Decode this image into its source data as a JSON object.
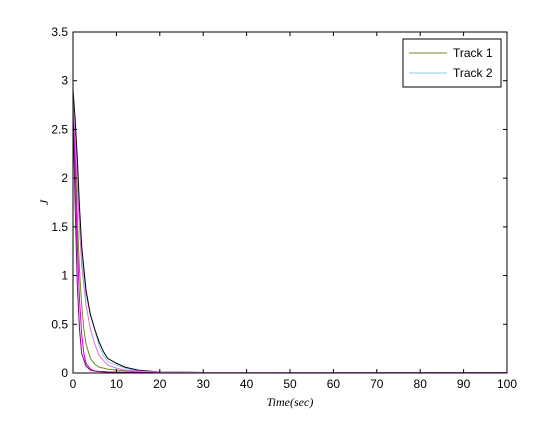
{
  "chart_data": {
    "type": "line",
    "xlabel": "Time(sec)",
    "ylabel": "J",
    "xlim": [
      0,
      100
    ],
    "ylim": [
      0,
      3.5
    ],
    "xticks": [
      0,
      10,
      20,
      30,
      40,
      50,
      60,
      70,
      80,
      90,
      100
    ],
    "yticks": [
      0,
      0.5,
      1,
      1.5,
      2,
      2.5,
      3,
      3.5
    ],
    "grid": false,
    "legend_position": "top-right",
    "legend": [
      "Track 1",
      "Track 2"
    ],
    "series": [
      {
        "name": "Track 1",
        "color": "#6b8e23",
        "x": [
          0,
          0.5,
          1,
          1.5,
          2,
          2.5,
          3,
          4,
          5,
          6,
          8,
          10,
          15,
          30,
          100
        ],
        "y": [
          2.85,
          2.3,
          1.6,
          1.05,
          0.7,
          0.45,
          0.3,
          0.15,
          0.09,
          0.06,
          0.04,
          0.03,
          0.01,
          0.005,
          0.003
        ]
      },
      {
        "name": "Track 2",
        "color": "#87ceeb",
        "x": [
          0,
          0.5,
          1,
          2,
          3,
          4,
          5,
          6,
          7,
          8,
          10,
          12,
          15,
          20,
          30,
          100
        ],
        "y": [
          2.75,
          2.5,
          2.0,
          1.2,
          0.8,
          0.6,
          0.45,
          0.28,
          0.18,
          0.12,
          0.08,
          0.05,
          0.02,
          0.01,
          0.005,
          0.003
        ]
      },
      {
        "color": "#000000",
        "x": [
          0,
          0.5,
          1,
          1.5,
          2,
          3,
          4,
          5,
          6,
          7,
          8,
          10,
          12,
          15,
          20,
          30,
          100
        ],
        "y": [
          2.9,
          2.6,
          2.2,
          1.7,
          1.3,
          0.85,
          0.6,
          0.45,
          0.32,
          0.22,
          0.15,
          0.1,
          0.06,
          0.03,
          0.01,
          0.005,
          0.003
        ]
      },
      {
        "color": "#cc00cc",
        "x": [
          0,
          0.5,
          1,
          1.5,
          2,
          2.5,
          3,
          4,
          5,
          6,
          8,
          10,
          15,
          30,
          100
        ],
        "y": [
          2.85,
          2.1,
          1.3,
          0.75,
          0.4,
          0.2,
          0.1,
          0.04,
          0.02,
          0.015,
          0.01,
          0.008,
          0.005,
          0.003,
          0.002
        ]
      },
      {
        "color": "#800080",
        "x": [
          0,
          0.5,
          1,
          1.5,
          2,
          3,
          4,
          5,
          6,
          8,
          10,
          15,
          30,
          100
        ],
        "y": [
          2.7,
          1.7,
          0.9,
          0.45,
          0.2,
          0.07,
          0.03,
          0.02,
          0.015,
          0.01,
          0.008,
          0.005,
          0.003,
          0.002
        ]
      },
      {
        "color": "#da70d6",
        "x": [
          0,
          0.5,
          1,
          2,
          3,
          4,
          5,
          6,
          8,
          10,
          12,
          15,
          20,
          30,
          100
        ],
        "y": [
          2.8,
          2.4,
          1.9,
          1.1,
          0.7,
          0.45,
          0.3,
          0.18,
          0.08,
          0.05,
          0.03,
          0.02,
          0.01,
          0.005,
          0.003
        ]
      }
    ]
  }
}
